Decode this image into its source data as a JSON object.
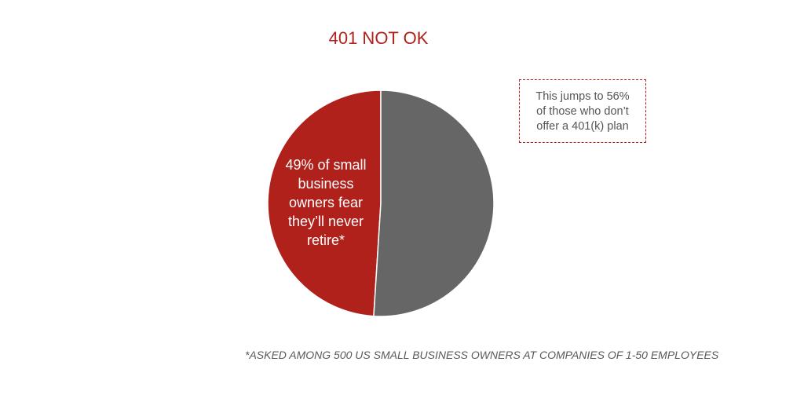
{
  "chart_data": {
    "type": "pie",
    "title": "401 NOT OK",
    "values": [
      49,
      51
    ],
    "colors": [
      "#b0211b",
      "#666666"
    ],
    "slice_annotation": "49% of small business owners fear they’ll never retire*",
    "callout": "This jumps to 56% of those who don’t offer a 401(k) plan",
    "footnote": "*ASKED AMONG 500 US SMALL BUSINESS OWNERS AT COMPANIES OF 1-50 EMPLOYEES"
  }
}
